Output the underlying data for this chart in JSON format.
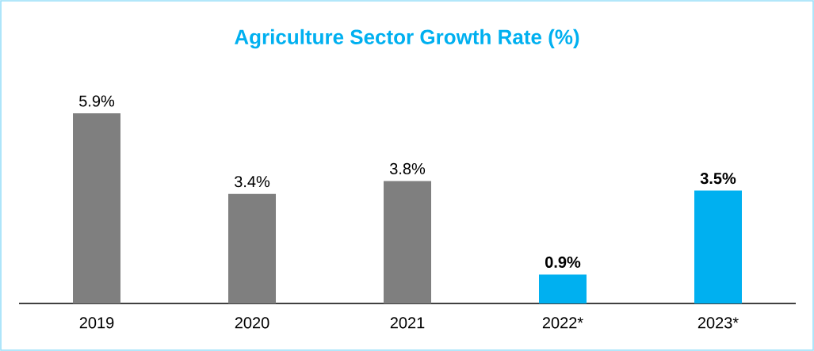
{
  "chart_data": {
    "type": "bar",
    "title": "Agriculture Sector Growth Rate (%)",
    "categories": [
      "2019",
      "2020",
      "2021",
      "2022*",
      "2023*"
    ],
    "values": [
      5.9,
      3.4,
      3.8,
      0.9,
      3.5
    ],
    "colors": [
      "#7f7f7f",
      "#7f7f7f",
      "#7f7f7f",
      "#00b0f0",
      "#00b0f0"
    ],
    "value_labels": [
      "5.9%",
      "3.4%",
      "3.8%",
      "**0.9%**",
      "**3.5%**"
    ]
  }
}
